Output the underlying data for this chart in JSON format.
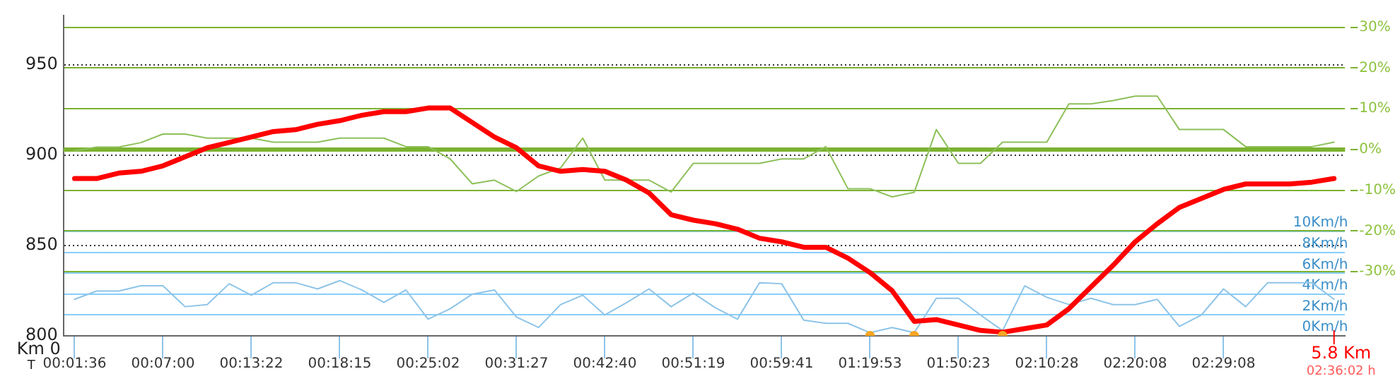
{
  "chart_data": {
    "type": "line",
    "categories": [
      "00:01:36",
      null,
      null,
      null,
      "00:07:00",
      null,
      null,
      null,
      "00:13:22",
      null,
      null,
      null,
      "00:18:15",
      null,
      null,
      null,
      "00:25:02",
      null,
      null,
      null,
      "00:31:27",
      null,
      null,
      null,
      "00:42:40",
      null,
      null,
      null,
      "00:51:19",
      null,
      null,
      null,
      "00:59:41",
      null,
      null,
      null,
      "01:19:53",
      null,
      null,
      null,
      "01:50:23",
      null,
      null,
      null,
      "02:10:28",
      null,
      null,
      null,
      "02:20:08",
      null,
      null,
      null,
      "02:29:08",
      null,
      null,
      null,
      null,
      null
    ],
    "ylim": [
      800,
      977
    ],
    "yticks": [
      800,
      850,
      900,
      950
    ],
    "y2lim": [
      -45.7,
      32.8
    ],
    "y2ticks": [
      {
        "value": 30,
        "label": "30%"
      },
      {
        "value": 20,
        "label": "20%"
      },
      {
        "value": 10,
        "label": "10%"
      },
      {
        "value": 0,
        "label": "0%"
      },
      {
        "value": -10,
        "label": "-10%"
      },
      {
        "value": -20,
        "label": "-20%"
      },
      {
        "value": -30,
        "label": "-30%"
      }
    ],
    "y3lim": [
      0,
      30.7
    ],
    "y3ticks": [
      {
        "value": 0,
        "label": "0Km/h"
      },
      {
        "value": 2,
        "label": "2Km/h"
      },
      {
        "value": 4,
        "label": "4Km/h"
      },
      {
        "value": 6,
        "label": "6Km/h"
      },
      {
        "value": 8,
        "label": "8Km/h"
      },
      {
        "value": 10,
        "label": "10Km/h"
      }
    ],
    "grid": "y",
    "legend": false,
    "marker": "none",
    "ref_lines": [
      {
        "axis": "y2",
        "value": 0,
        "color": "#7cb231"
      }
    ],
    "series": [
      {
        "color": "#8dc05a",
        "axis": "y2",
        "values": [
          -0.3,
          0.6,
          0.6,
          1.7,
          3.8,
          3.8,
          2.8,
          2.8,
          2.8,
          1.8,
          1.8,
          1.8,
          2.8,
          2.8,
          2.8,
          0.7,
          0.7,
          -2.3,
          -8.4,
          -7.5,
          -10.3,
          -6.5,
          -4.5,
          2.8,
          -7.5,
          -7.5,
          -7.5,
          -10.4,
          -3.4,
          -3.4,
          -3.4,
          -3.4,
          -2.3,
          -2.3,
          0.7,
          -9.6,
          -9.6,
          -11.6,
          -10.5,
          4.9,
          -3.4,
          -3.4,
          1.8,
          1.8,
          1.8,
          11.2,
          11.2,
          12,
          13.1,
          13.1,
          4.9,
          4.9,
          4.9,
          0.7,
          0.7,
          0.7,
          0.7,
          1.8
        ]
      },
      {
        "color": "#8ec4e8",
        "axis": "y3",
        "values": [
          3.5,
          4.3,
          4.3,
          4.8,
          4.8,
          2.8,
          3.0,
          5.0,
          3.9,
          5.1,
          5.1,
          4.5,
          5.3,
          4.4,
          3.2,
          4.4,
          1.6,
          2.6,
          4.0,
          4.4,
          1.8,
          0.8,
          3.0,
          3.9,
          2.0,
          3.2,
          4.5,
          2.8,
          4.1,
          2.7,
          1.6,
          5.1,
          5.0,
          1.5,
          1.2,
          1.2,
          0.3,
          0.8,
          0.3,
          3.6,
          3.6,
          2.0,
          0.5,
          4.8,
          3.7,
          3.0,
          3.6,
          3.0,
          3.0,
          3.5,
          0.9,
          2.0,
          4.5,
          2.8,
          5.1,
          5.1,
          5.1,
          3.5
        ]
      },
      {
        "color": "#ff0000",
        "values": [
          887,
          887,
          890,
          891,
          894,
          899,
          904,
          907,
          910,
          913,
          914,
          917,
          919,
          922,
          924,
          924,
          926,
          926,
          918,
          910,
          904,
          894,
          891,
          892,
          891,
          886,
          879,
          867,
          864,
          862,
          859,
          854,
          852,
          849,
          849,
          843,
          835,
          825,
          808,
          809,
          806,
          803,
          802,
          804,
          806,
          815,
          827,
          839,
          852,
          862,
          871,
          876,
          881,
          884,
          884,
          884,
          885,
          887
        ]
      },
      {
        "type": "scatter",
        "color": "#f5a623",
        "axis": "y3",
        "marker": "circle",
        "values": [
          null,
          null,
          null,
          null,
          null,
          null,
          null,
          null,
          null,
          null,
          null,
          null,
          null,
          null,
          null,
          null,
          null,
          null,
          null,
          null,
          null,
          null,
          null,
          null,
          null,
          null,
          null,
          null,
          null,
          null,
          null,
          null,
          null,
          null,
          null,
          null,
          0,
          null,
          0,
          null,
          null,
          null,
          0,
          null,
          null,
          null,
          null,
          null,
          null,
          null,
          null,
          null,
          null,
          null,
          null,
          null,
          null,
          null
        ]
      }
    ],
    "annotations": [
      "Km 0",
      "T",
      "5.8 Km",
      "02:36:02 h"
    ]
  }
}
